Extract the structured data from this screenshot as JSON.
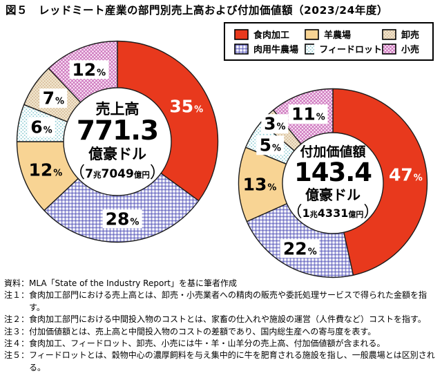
{
  "title": "図５　レッドミート産業の部門別売上高および付加価値額（2023/24年度）",
  "percent_symbol": "%",
  "colors": {
    "processing": "#e8391d",
    "sheep": "#f8d494",
    "cattle": "#6b6bc2",
    "feedlot": "#8fcdd4",
    "wholesale": "#c9a47f",
    "wholesale_bg": "#f0e5cc",
    "retail": "#c765b5",
    "retail_bg": "#f8e3f4",
    "outline": "#1c1c1c"
  },
  "legend": {
    "items": [
      {
        "key": "processing",
        "label": "食肉加工"
      },
      {
        "key": "sheep",
        "label": "羊農場"
      },
      {
        "key": "wholesale",
        "label": "卸売"
      },
      {
        "key": "cattle",
        "label": "肉用牛農場"
      },
      {
        "key": "feedlot",
        "label": "フィードロット"
      },
      {
        "key": "retail",
        "label": "小売"
      }
    ]
  },
  "chart_data": [
    {
      "type": "pie",
      "name": "sales",
      "center": {
        "title": "売上高",
        "value": "771.3",
        "unit": "億豪ドル",
        "sub": {
          "open": "（",
          "v1": "7",
          "u1": "兆",
          "v2": "7049",
          "u2": "億円",
          "close": "）"
        }
      },
      "categories": [
        "食肉加工",
        "肉用牛農場",
        "羊農場",
        "フィードロット",
        "卸売",
        "小売"
      ],
      "keys": [
        "processing",
        "cattle",
        "sheep",
        "feedlot",
        "wholesale",
        "retail"
      ],
      "values": [
        35,
        28,
        12,
        6,
        7,
        12
      ],
      "unit": "%",
      "start_angle_deg": 0,
      "direction": "clockwise"
    },
    {
      "type": "pie",
      "name": "value_added",
      "center": {
        "title": "付加価値額",
        "value": "143.4",
        "unit": "億豪ドル",
        "sub": {
          "open": "（",
          "v1": "1",
          "u1": "兆",
          "v2": "4331",
          "u2": "億円",
          "close": "）"
        }
      },
      "categories": [
        "食肉加工",
        "肉用牛農場",
        "羊農場",
        "フィードロット",
        "卸売",
        "小売"
      ],
      "keys": [
        "processing",
        "cattle",
        "sheep",
        "feedlot",
        "wholesale",
        "retail"
      ],
      "values": [
        47,
        22,
        13,
        5,
        3,
        11
      ],
      "unit": "%",
      "start_angle_deg": 0,
      "direction": "clockwise"
    }
  ],
  "notes": [
    {
      "label": "資料：",
      "text": "MLA「State of the Industry Report」を基に筆者作成"
    },
    {
      "label": "注１：",
      "text": "食肉加工部門における売上高とは、卸売・小売業者への精肉の販売や委託処理サービスで得られた金額を指す。"
    },
    {
      "label": "注２：",
      "text": "食肉加工部門における中間投入物のコストとは、家畜の仕入れや施設の運営（人件費など）コストを指す。"
    },
    {
      "label": "注３：",
      "text": "付加価値額とは、売上高と中間投入物のコストの差額であり、国内総生産への寄与度を表す。"
    },
    {
      "label": "注４：",
      "text": "食肉加工、フィードロット、卸売、小売には牛・羊・山羊分の売上高、付加価値額が含まれる。"
    },
    {
      "label": "注５：",
      "text": "フィードロットとは、穀物中心の濃厚飼料を与え集中的に牛を肥育される施設を指し、一般農場とは区別される。"
    }
  ]
}
